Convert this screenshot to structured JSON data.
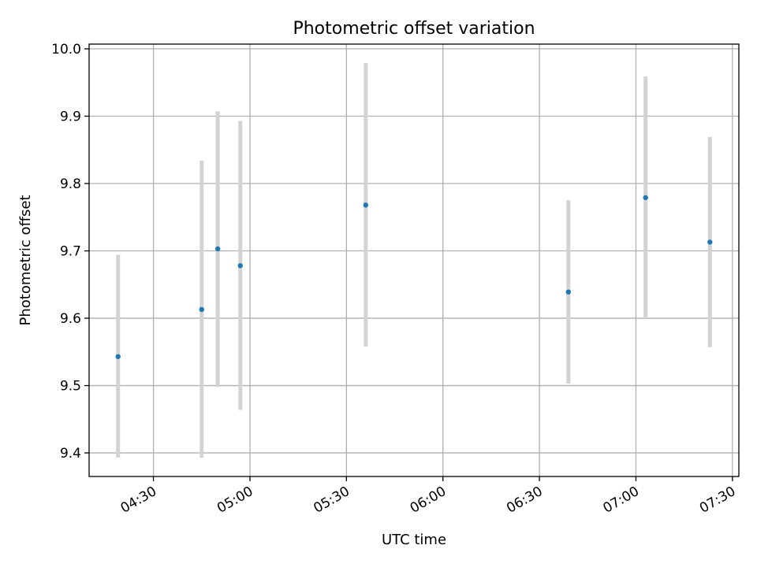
{
  "chart_data": {
    "type": "scatter",
    "title": "Photometric offset variation",
    "xlabel": "UTC time",
    "ylabel": "Photometric offset",
    "grid": true,
    "xlim": [
      "04:10",
      "07:32"
    ],
    "ylim": [
      9.365,
      10.007
    ],
    "x_ticks": [
      "04:30",
      "05:00",
      "05:30",
      "06:00",
      "06:30",
      "07:00",
      "07:30"
    ],
    "y_ticks": [
      9.4,
      9.5,
      9.6,
      9.7,
      9.8,
      9.9,
      10.0
    ],
    "y_tick_labels": [
      "9.4",
      "9.5",
      "9.6",
      "9.7",
      "9.8",
      "9.9",
      "10.0"
    ],
    "colors": {
      "marker": "#1f77b4",
      "error_bar": "#d3d3d3",
      "grid": "#b0b0b0"
    },
    "points": [
      {
        "x": "04:19",
        "y": 9.543,
        "y_low": 9.393,
        "y_high": 9.694
      },
      {
        "x": "04:45",
        "y": 9.613,
        "y_low": 9.393,
        "y_high": 9.834
      },
      {
        "x": "04:50",
        "y": 9.703,
        "y_low": 9.498,
        "y_high": 9.907
      },
      {
        "x": "04:57",
        "y": 9.678,
        "y_low": 9.464,
        "y_high": 9.893
      },
      {
        "x": "05:36",
        "y": 9.768,
        "y_low": 9.558,
        "y_high": 9.979
      },
      {
        "x": "06:39",
        "y": 9.639,
        "y_low": 9.503,
        "y_high": 9.775
      },
      {
        "x": "07:03",
        "y": 9.779,
        "y_low": 9.6,
        "y_high": 9.959
      },
      {
        "x": "07:23",
        "y": 9.713,
        "y_low": 9.557,
        "y_high": 9.869
      }
    ]
  }
}
